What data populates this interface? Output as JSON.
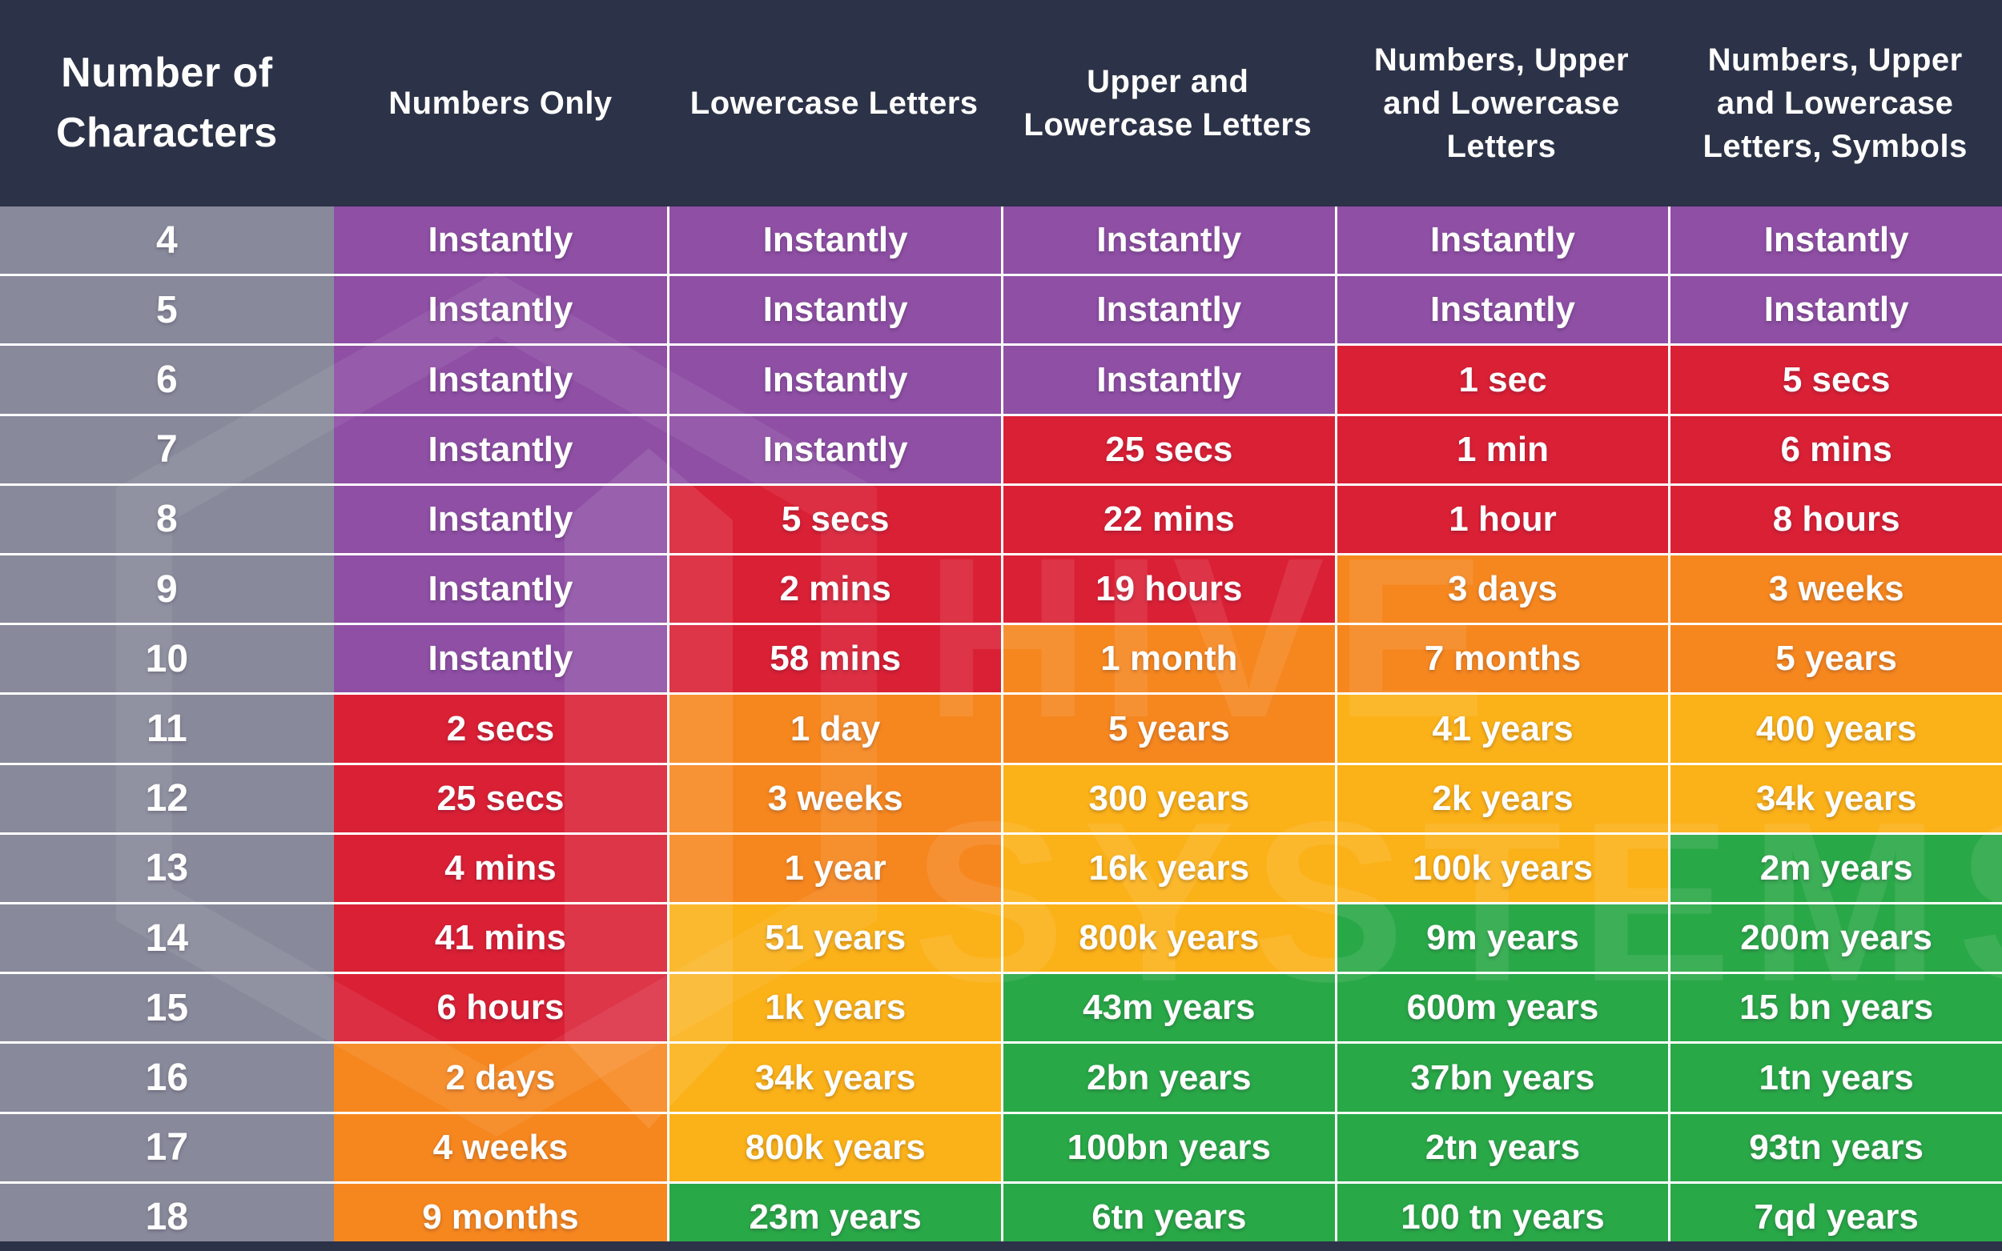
{
  "chart_data": {
    "type": "table",
    "columns": [
      "Number of Characters",
      "Numbers Only",
      "Lowercase Letters",
      "Upper and Lowercase Letters",
      "Numbers, Upper and Lowercase Letters",
      "Numbers, Upper and Lowercase Letters, Symbols"
    ],
    "rows": [
      {
        "chars": "4",
        "cells": [
          {
            "text": "Instantly",
            "color": "purple"
          },
          {
            "text": "Instantly",
            "color": "purple"
          },
          {
            "text": "Instantly",
            "color": "purple"
          },
          {
            "text": "Instantly",
            "color": "purple"
          },
          {
            "text": "Instantly",
            "color": "purple"
          }
        ]
      },
      {
        "chars": "5",
        "cells": [
          {
            "text": "Instantly",
            "color": "purple"
          },
          {
            "text": "Instantly",
            "color": "purple"
          },
          {
            "text": "Instantly",
            "color": "purple"
          },
          {
            "text": "Instantly",
            "color": "purple"
          },
          {
            "text": "Instantly",
            "color": "purple"
          }
        ]
      },
      {
        "chars": "6",
        "cells": [
          {
            "text": "Instantly",
            "color": "purple"
          },
          {
            "text": "Instantly",
            "color": "purple"
          },
          {
            "text": "Instantly",
            "color": "purple"
          },
          {
            "text": "1 sec",
            "color": "red"
          },
          {
            "text": "5 secs",
            "color": "red"
          }
        ]
      },
      {
        "chars": "7",
        "cells": [
          {
            "text": "Instantly",
            "color": "purple"
          },
          {
            "text": "Instantly",
            "color": "purple"
          },
          {
            "text": "25 secs",
            "color": "red"
          },
          {
            "text": "1 min",
            "color": "red"
          },
          {
            "text": "6 mins",
            "color": "red"
          }
        ]
      },
      {
        "chars": "8",
        "cells": [
          {
            "text": "Instantly",
            "color": "purple"
          },
          {
            "text": "5 secs",
            "color": "red"
          },
          {
            "text": "22 mins",
            "color": "red"
          },
          {
            "text": "1 hour",
            "color": "red"
          },
          {
            "text": "8 hours",
            "color": "red"
          }
        ]
      },
      {
        "chars": "9",
        "cells": [
          {
            "text": "Instantly",
            "color": "purple"
          },
          {
            "text": "2 mins",
            "color": "red"
          },
          {
            "text": "19 hours",
            "color": "red"
          },
          {
            "text": "3 days",
            "color": "orange"
          },
          {
            "text": "3 weeks",
            "color": "orange"
          }
        ]
      },
      {
        "chars": "10",
        "cells": [
          {
            "text": "Instantly",
            "color": "purple"
          },
          {
            "text": "58 mins",
            "color": "red"
          },
          {
            "text": "1 month",
            "color": "orange"
          },
          {
            "text": "7 months",
            "color": "orange"
          },
          {
            "text": "5 years",
            "color": "orange"
          }
        ]
      },
      {
        "chars": "11",
        "cells": [
          {
            "text": "2 secs",
            "color": "red"
          },
          {
            "text": "1 day",
            "color": "orange"
          },
          {
            "text": "5 years",
            "color": "orange"
          },
          {
            "text": "41 years",
            "color": "amber"
          },
          {
            "text": "400 years",
            "color": "amber"
          }
        ]
      },
      {
        "chars": "12",
        "cells": [
          {
            "text": "25 secs",
            "color": "red"
          },
          {
            "text": "3 weeks",
            "color": "orange"
          },
          {
            "text": "300 years",
            "color": "amber"
          },
          {
            "text": "2k years",
            "color": "amber"
          },
          {
            "text": "34k years",
            "color": "amber"
          }
        ]
      },
      {
        "chars": "13",
        "cells": [
          {
            "text": "4 mins",
            "color": "red"
          },
          {
            "text": "1 year",
            "color": "orange"
          },
          {
            "text": "16k years",
            "color": "amber"
          },
          {
            "text": "100k years",
            "color": "amber"
          },
          {
            "text": "2m years",
            "color": "green"
          }
        ]
      },
      {
        "chars": "14",
        "cells": [
          {
            "text": "41 mins",
            "color": "red"
          },
          {
            "text": "51 years",
            "color": "amber"
          },
          {
            "text": "800k years",
            "color": "amber"
          },
          {
            "text": "9m years",
            "color": "green"
          },
          {
            "text": "200m years",
            "color": "green"
          }
        ]
      },
      {
        "chars": "15",
        "cells": [
          {
            "text": "6 hours",
            "color": "red"
          },
          {
            "text": "1k years",
            "color": "amber"
          },
          {
            "text": "43m years",
            "color": "green"
          },
          {
            "text": "600m years",
            "color": "green"
          },
          {
            "text": "15 bn years",
            "color": "green"
          }
        ]
      },
      {
        "chars": "16",
        "cells": [
          {
            "text": "2 days",
            "color": "orange"
          },
          {
            "text": "34k years",
            "color": "amber"
          },
          {
            "text": "2bn years",
            "color": "green"
          },
          {
            "text": "37bn years",
            "color": "green"
          },
          {
            "text": "1tn years",
            "color": "green"
          }
        ]
      },
      {
        "chars": "17",
        "cells": [
          {
            "text": "4 weeks",
            "color": "orange"
          },
          {
            "text": "800k years",
            "color": "amber"
          },
          {
            "text": "100bn years",
            "color": "green"
          },
          {
            "text": "2tn years",
            "color": "green"
          },
          {
            "text": "93tn years",
            "color": "green"
          }
        ]
      },
      {
        "chars": "18",
        "cells": [
          {
            "text": "9 months",
            "color": "orange"
          },
          {
            "text": "23m years",
            "color": "green"
          },
          {
            "text": "6tn years",
            "color": "green"
          },
          {
            "text": "100 tn years",
            "color": "green"
          },
          {
            "text": "7qd years",
            "color": "green"
          }
        ]
      }
    ],
    "cell_colors_hex": {
      "navy": "#2C3247",
      "grey": "#888A9B",
      "purple": "#8E4FA4",
      "red": "#DA2035",
      "orange": "#F6871F",
      "amber": "#FBB118",
      "green": "#29A847"
    }
  },
  "watermark": {
    "line1": "HIVE",
    "line2": "SYSTEMS"
  }
}
